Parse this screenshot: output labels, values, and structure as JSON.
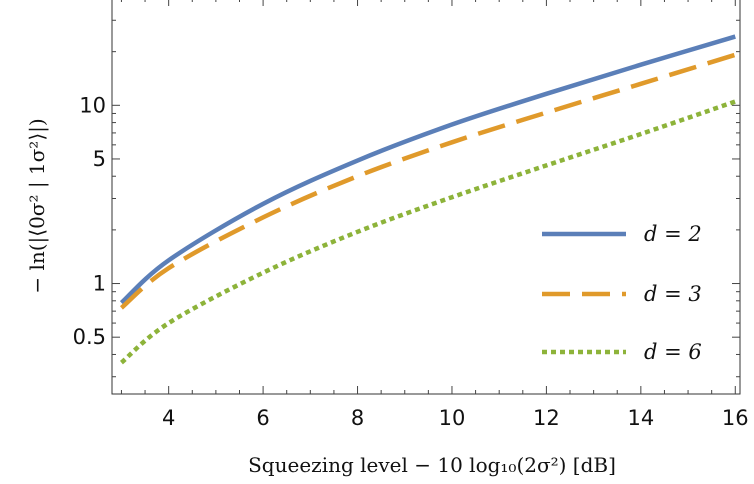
{
  "chart_data": {
    "type": "line",
    "x": [
      3,
      4,
      6,
      8,
      10,
      12,
      14,
      16
    ],
    "series": [
      {
        "name": "d = 2",
        "values": [
          0.78,
          1.35,
          2.8,
          4.9,
          7.8,
          11.6,
          16.9,
          24.3
        ],
        "color": "#5b7fb8",
        "dash": "solid"
      },
      {
        "name": "d = 3",
        "values": [
          0.73,
          1.22,
          2.35,
          4.0,
          6.2,
          9.1,
          13.2,
          19.2
        ],
        "color": "#e09a2b",
        "dash": "dashed"
      },
      {
        "name": "d = 6",
        "values": [
          0.36,
          0.6,
          1.15,
          1.95,
          3.05,
          4.6,
          6.9,
          10.5
        ],
        "color": "#8db33a",
        "dash": "dotted"
      }
    ],
    "x_ticks": [
      "4",
      "6",
      "8",
      "10",
      "12",
      "14",
      "16"
    ],
    "y_ticks": [
      "0.5",
      "1",
      "5",
      "10"
    ],
    "y_tick_values": [
      0.5,
      1,
      5,
      10
    ],
    "xlabel": "Squeezing level  − 10 log₁₀(2σ²)  [dB]",
    "ylabel": "− ln(|⟨0σ² | 1σ²⟩|)",
    "xlim": [
      2.8,
      16.1
    ],
    "ylim": [
      0.24,
      40
    ],
    "yscale": "log",
    "legend_position": "right",
    "grid": false
  }
}
